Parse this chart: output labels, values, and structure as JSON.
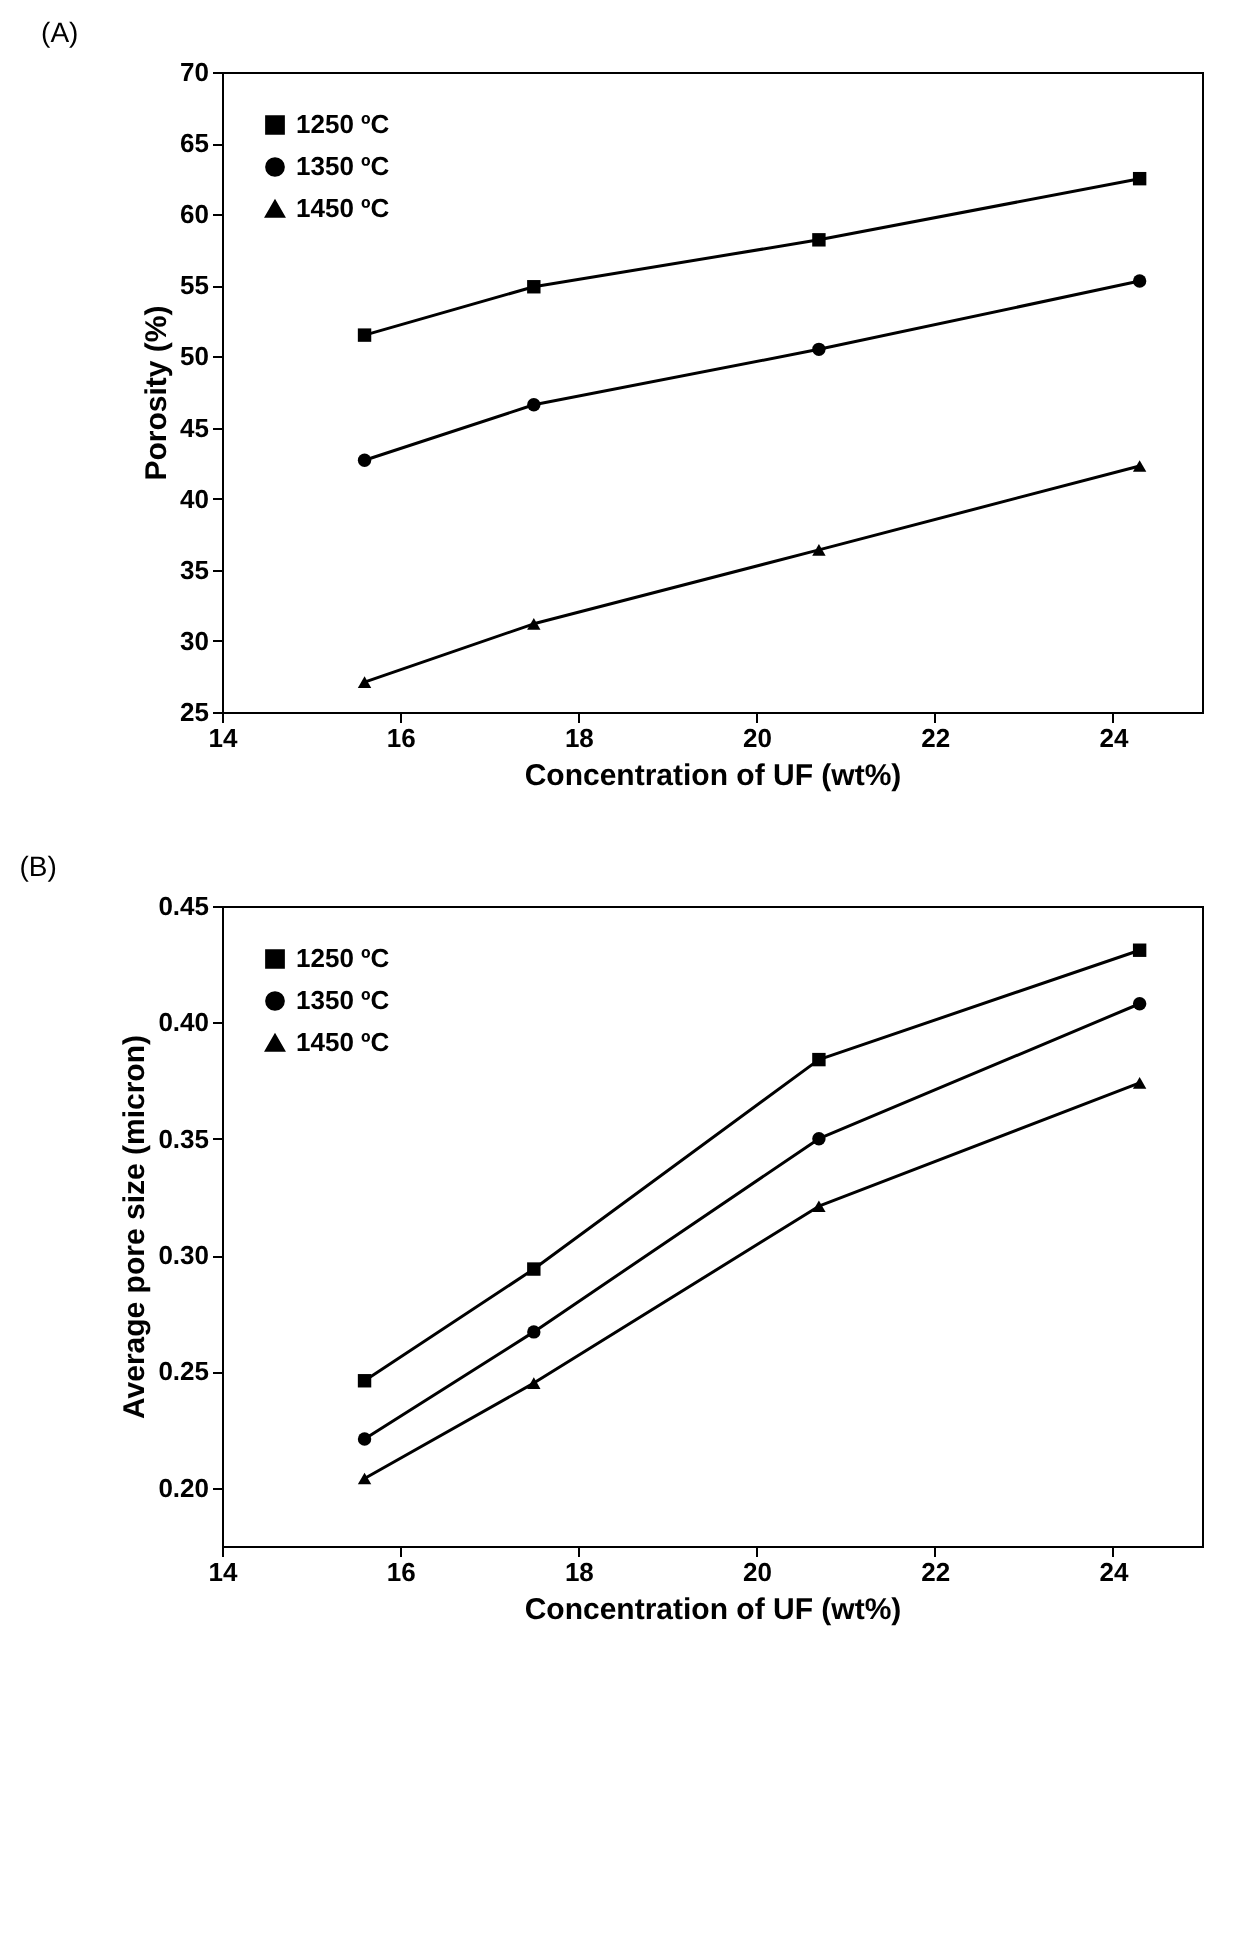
{
  "chart_data": [
    {
      "type": "line",
      "title": "(A)",
      "xlabel": "Concentration of UF (wt%)",
      "ylabel": "Porosity (%)",
      "x": [
        15.6,
        17.5,
        20.7,
        24.3
      ],
      "series": [
        {
          "name": "1250 ºC",
          "color": "#000000",
          "marker": "square",
          "values": [
            51.5,
            54.9,
            58.2,
            62.5
          ]
        },
        {
          "name": "1350 ºC",
          "color": "#000000",
          "marker": "circle",
          "values": [
            42.7,
            46.6,
            50.5,
            55.3
          ]
        },
        {
          "name": "1450 ºC",
          "color": "#000000",
          "marker": "triangle",
          "values": [
            27.1,
            31.2,
            36.4,
            42.3
          ]
        }
      ],
      "xlim": [
        14,
        25
      ],
      "xticks": [
        14,
        16,
        18,
        20,
        22,
        24
      ],
      "ylim": [
        25,
        70
      ],
      "yticks": [
        25,
        30,
        35,
        40,
        45,
        50,
        55,
        60,
        65,
        70
      ],
      "grid": false,
      "legend": "top left",
      "line_style": "solid"
    },
    {
      "type": "line",
      "title": "(B)",
      "xlabel": "Concentration of UF (wt%)",
      "ylabel": "Average pore size (micron)",
      "x": [
        15.6,
        17.5,
        20.7,
        24.3
      ],
      "series": [
        {
          "name": "1250 ºC",
          "color": "#000000",
          "marker": "square",
          "values": [
            0.246,
            0.294,
            0.384,
            0.431
          ]
        },
        {
          "name": "1350 ºC",
          "color": "#000000",
          "marker": "circle",
          "values": [
            0.221,
            0.267,
            0.35,
            0.408
          ]
        },
        {
          "name": "1450 ºC",
          "color": "#000000",
          "marker": "triangle",
          "values": [
            0.204,
            0.245,
            0.321,
            0.374
          ]
        }
      ],
      "xlim": [
        14,
        25
      ],
      "xticks": [
        14,
        16,
        18,
        20,
        22,
        24
      ],
      "ylim": [
        0.175,
        0.45
      ],
      "yticks": [
        {
          "value": 0.2,
          "label": "0.20"
        },
        {
          "value": 0.25,
          "label": "0.25"
        },
        {
          "value": 0.3,
          "label": "0.30"
        },
        {
          "value": 0.35,
          "label": "0.35"
        },
        {
          "value": 0.4,
          "label": "0.40"
        },
        {
          "value": 0.45,
          "label": "0.45"
        }
      ],
      "grid": false,
      "legend": "top left",
      "line_style": "solid"
    }
  ]
}
